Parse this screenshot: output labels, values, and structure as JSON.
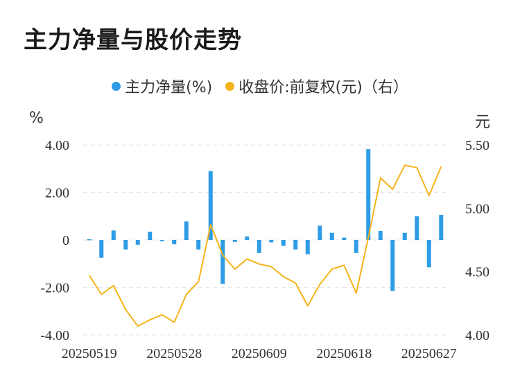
{
  "chart_data": {
    "type": "bar+line",
    "title": "主力净量与股价走势",
    "legend": [
      {
        "name": "主力净量(%)",
        "color": "#2e9ce6"
      },
      {
        "name": "收盘价:前复权(元)（右）",
        "color": "#f5b31a"
      }
    ],
    "left_axis": {
      "unit": "%",
      "ticks": [
        "4.00",
        "2.00",
        "0",
        "-2.00",
        "-4.00"
      ],
      "min": -4,
      "max": 4
    },
    "right_axis": {
      "unit": "元",
      "ticks": [
        "5.50",
        "5.00",
        "4.50",
        "4.00"
      ],
      "min": 4.0,
      "max": 5.5
    },
    "x_tick_labels": [
      "20250519",
      "20250528",
      "20250609",
      "20250618",
      "20250627"
    ],
    "x_tick_indices": [
      0,
      7,
      14,
      21,
      28
    ],
    "net_volume": [
      0.03,
      -0.75,
      0.4,
      -0.4,
      -0.2,
      0.35,
      -0.05,
      -0.18,
      0.78,
      -0.4,
      2.9,
      -1.85,
      -0.08,
      0.15,
      -0.55,
      -0.1,
      -0.25,
      -0.4,
      -0.6,
      0.6,
      0.3,
      0.1,
      -0.55,
      3.82,
      0.38,
      -2.15,
      0.3,
      1.0,
      -1.15,
      1.05
    ],
    "close_price": [
      4.47,
      4.32,
      4.39,
      4.2,
      4.07,
      4.12,
      4.16,
      4.1,
      4.32,
      4.42,
      4.87,
      4.63,
      4.52,
      4.6,
      4.56,
      4.54,
      4.46,
      4.41,
      4.23,
      4.4,
      4.52,
      4.55,
      4.33,
      4.77,
      5.24,
      5.15,
      5.34,
      5.32,
      5.1,
      5.33
    ]
  }
}
